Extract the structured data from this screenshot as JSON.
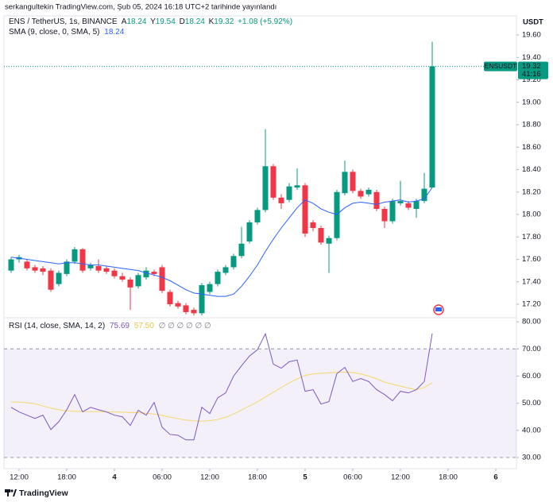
{
  "attribution": "serkangultekin TradingView.com, Şub 05, 2024 16:18 UTC+2 tarihinde yayınlandı",
  "header": {
    "symbol": "ENS / TetherUS, 1s, BINANCE",
    "ohlc_letters": [
      "A",
      "Y",
      "D",
      "K"
    ],
    "change": "+1.08 (+5.92%)"
  },
  "footer": "TradingView",
  "chart_data": [
    {
      "type": "candlestick",
      "currency": "USDT",
      "symbol_label": "ENSUSDT",
      "countdown": "41:16",
      "up_color": "#089981",
      "down_color": "#f23645",
      "grid": false,
      "x": [
        -1,
        0,
        1,
        2,
        3,
        4,
        5,
        6,
        7,
        8,
        9,
        10,
        11,
        12,
        13,
        14,
        15,
        16,
        17,
        18,
        19,
        20,
        21,
        22,
        23,
        24,
        25,
        26,
        27,
        28,
        29,
        30,
        31,
        32,
        33,
        34,
        35,
        36,
        37,
        38,
        39,
        40,
        41,
        42,
        43,
        44,
        45,
        46,
        47,
        48,
        49,
        50,
        51,
        52
      ],
      "open": [
        17.5,
        17.6,
        17.58,
        17.53,
        17.52,
        17.5,
        17.38,
        17.47,
        17.58,
        17.69,
        17.52,
        17.54,
        17.52,
        17.5,
        17.45,
        17.42,
        17.36,
        17.44,
        17.49,
        17.53,
        17.31,
        17.21,
        17.19,
        17.15,
        17.12,
        17.31,
        17.38,
        17.48,
        17.53,
        17.63,
        17.76,
        17.93,
        18.04,
        18.43,
        18.15,
        18.13,
        18.24,
        18.26,
        17.93,
        17.88,
        17.74,
        17.79,
        18.19,
        18.38,
        18.21,
        18.18,
        18.2,
        18.05,
        17.94,
        18.1,
        18.1,
        18.05,
        18.12,
        18.24
      ],
      "high": [
        17.62,
        17.64,
        17.6,
        17.55,
        17.54,
        17.52,
        17.5,
        17.6,
        17.71,
        17.7,
        17.57,
        17.6,
        17.54,
        17.52,
        17.48,
        17.44,
        17.48,
        17.53,
        17.51,
        17.55,
        17.33,
        17.23,
        17.21,
        17.17,
        17.39,
        17.4,
        17.51,
        17.55,
        17.65,
        17.89,
        17.95,
        18.06,
        18.76,
        18.45,
        18.18,
        18.28,
        18.41,
        18.28,
        17.95,
        17.9,
        17.81,
        18.22,
        18.48,
        18.4,
        18.23,
        18.24,
        18.22,
        18.07,
        18.14,
        18.3,
        18.12,
        18.14,
        18.37,
        19.54
      ],
      "low": [
        17.48,
        17.57,
        17.5,
        17.48,
        17.46,
        17.31,
        17.36,
        17.45,
        17.56,
        17.48,
        17.5,
        17.48,
        17.47,
        17.43,
        17.4,
        17.15,
        17.34,
        17.42,
        17.45,
        17.3,
        17.18,
        17.16,
        17.11,
        17.1,
        17.1,
        17.29,
        17.36,
        17.46,
        17.51,
        17.61,
        17.74,
        17.91,
        18.02,
        18.13,
        18.05,
        18.11,
        18.22,
        17.8,
        17.85,
        17.73,
        17.48,
        17.77,
        18.17,
        18.19,
        18.14,
        18.16,
        18.03,
        17.88,
        17.92,
        18.08,
        18.04,
        17.97,
        18.1,
        18.24
      ],
      "close": [
        17.6,
        17.62,
        17.52,
        17.5,
        17.49,
        17.33,
        17.48,
        17.58,
        17.69,
        17.5,
        17.55,
        17.5,
        17.49,
        17.45,
        17.42,
        17.35,
        17.46,
        17.5,
        17.47,
        17.32,
        17.2,
        17.18,
        17.13,
        17.12,
        17.37,
        17.38,
        17.49,
        17.53,
        17.63,
        17.74,
        17.93,
        18.04,
        18.43,
        18.15,
        18.1,
        18.25,
        18.26,
        17.83,
        17.88,
        17.75,
        17.79,
        18.2,
        18.38,
        18.21,
        18.16,
        18.22,
        18.05,
        17.94,
        18.12,
        18.12,
        18.06,
        18.12,
        18.23,
        19.32
      ],
      "overlays": [
        {
          "name": "SMA (9, close, 0, SMA, 5)",
          "color": "#2962ff",
          "values": [
            17.62,
            17.61,
            17.6,
            17.59,
            17.58,
            17.57,
            17.56,
            17.57,
            17.57,
            17.56,
            17.55,
            17.55,
            17.54,
            17.53,
            17.52,
            17.51,
            17.5,
            17.48,
            17.46,
            17.44,
            17.41,
            17.37,
            17.33,
            17.3,
            17.29,
            17.28,
            17.27,
            17.27,
            17.29,
            17.36,
            17.45,
            17.55,
            17.67,
            17.78,
            17.88,
            17.97,
            18.06,
            18.13,
            18.1,
            18.05,
            18.02,
            18.0,
            18.06,
            18.1,
            18.11,
            18.1,
            18.09,
            18.11,
            18.12,
            18.13,
            18.11,
            18.12,
            18.14,
            18.24
          ]
        }
      ],
      "ylim": [
        17.08,
        19.77
      ],
      "yticks": [
        {
          "value": 19.6,
          "label": "19.60"
        },
        {
          "value": 19.4,
          "label": "19.40"
        },
        {
          "value": 19.2,
          "label": "19.20"
        },
        {
          "value": 19.0,
          "label": "19.00"
        },
        {
          "value": 18.8,
          "label": "18.80"
        },
        {
          "value": 18.6,
          "label": "18.60"
        },
        {
          "value": 18.4,
          "label": "18.40"
        },
        {
          "value": 18.2,
          "label": "18.20"
        },
        {
          "value": 18.0,
          "label": "18.00"
        },
        {
          "value": 17.8,
          "label": "17.80"
        },
        {
          "value": 17.6,
          "label": "17.60"
        },
        {
          "value": 17.4,
          "label": "17.40"
        },
        {
          "value": 17.2,
          "label": "17.20"
        }
      ],
      "xlim": [
        -1.9,
        62.6
      ],
      "xticks": [
        {
          "value": 0,
          "label": "12:00"
        },
        {
          "value": 6,
          "label": "18:00"
        },
        {
          "value": 12,
          "label": "4"
        },
        {
          "value": 18,
          "label": "06:00"
        },
        {
          "value": 24,
          "label": "12:00"
        },
        {
          "value": 30,
          "label": "18:00"
        },
        {
          "value": 36,
          "label": "5"
        },
        {
          "value": 42,
          "label": "06:00"
        },
        {
          "value": 48,
          "label": "12:00"
        },
        {
          "value": 54,
          "label": "18:00"
        },
        {
          "value": 60,
          "label": "6"
        }
      ]
    },
    {
      "type": "line",
      "title": "RSI (14, close, SMA, 14, 2)",
      "empty_values": "∅ ∅ ∅ ∅ ∅ ∅",
      "bands": {
        "upper": 70,
        "lower": 30,
        "color": "#7e57c2"
      },
      "series": [
        {
          "color": "#7e57c2",
          "values": [
            48.5,
            46.8,
            45.6,
            44.4,
            45.6,
            40.3,
            43.2,
            47.6,
            53.2,
            46.8,
            48.5,
            47.6,
            46.8,
            45.6,
            45.0,
            41.8,
            47.4,
            45.6,
            50.3,
            41.2,
            38.5,
            38.2,
            36.5,
            36.5,
            48.5,
            46.2,
            52.0,
            53.8,
            60.0,
            63.8,
            67.4,
            69.7,
            75.6,
            64.4,
            62.9,
            65.3,
            65.9,
            54.4,
            55.0,
            49.7,
            50.6,
            60.9,
            63.2,
            58.0,
            59.1,
            58.0,
            55.0,
            53.2,
            50.9,
            54.4,
            53.8,
            55.0,
            58.0,
            75.69
          ]
        },
        {
          "color": "#f5d76e",
          "last_value_label": "57.50",
          "values": [
            50.5,
            50.4,
            50.2,
            49.8,
            49.0,
            48.2,
            47.6,
            47.2,
            47.0,
            47.0,
            46.9,
            46.9,
            46.8,
            46.8,
            46.7,
            46.6,
            46.5,
            46.3,
            46.0,
            45.5,
            44.9,
            44.3,
            43.8,
            43.5,
            43.4,
            43.6,
            44.0,
            44.8,
            46.0,
            47.5,
            49.0,
            50.5,
            52.3,
            54.0,
            55.8,
            57.5,
            59.0,
            60.2,
            60.8,
            61.0,
            61.2,
            61.4,
            61.5,
            61.3,
            60.8,
            60.0,
            59.0,
            57.8,
            57.0,
            56.3,
            55.6,
            55.0,
            55.8,
            57.5
          ]
        }
      ],
      "ylim": [
        25.9,
        81.5
      ],
      "yticks": [
        {
          "value": 80,
          "label": "80.00"
        },
        {
          "value": 70,
          "label": "70.00"
        },
        {
          "value": 60,
          "label": "60.00"
        },
        {
          "value": 50,
          "label": "50.00"
        },
        {
          "value": 40,
          "label": "40.00"
        },
        {
          "value": 30,
          "label": "30.00"
        }
      ]
    }
  ]
}
